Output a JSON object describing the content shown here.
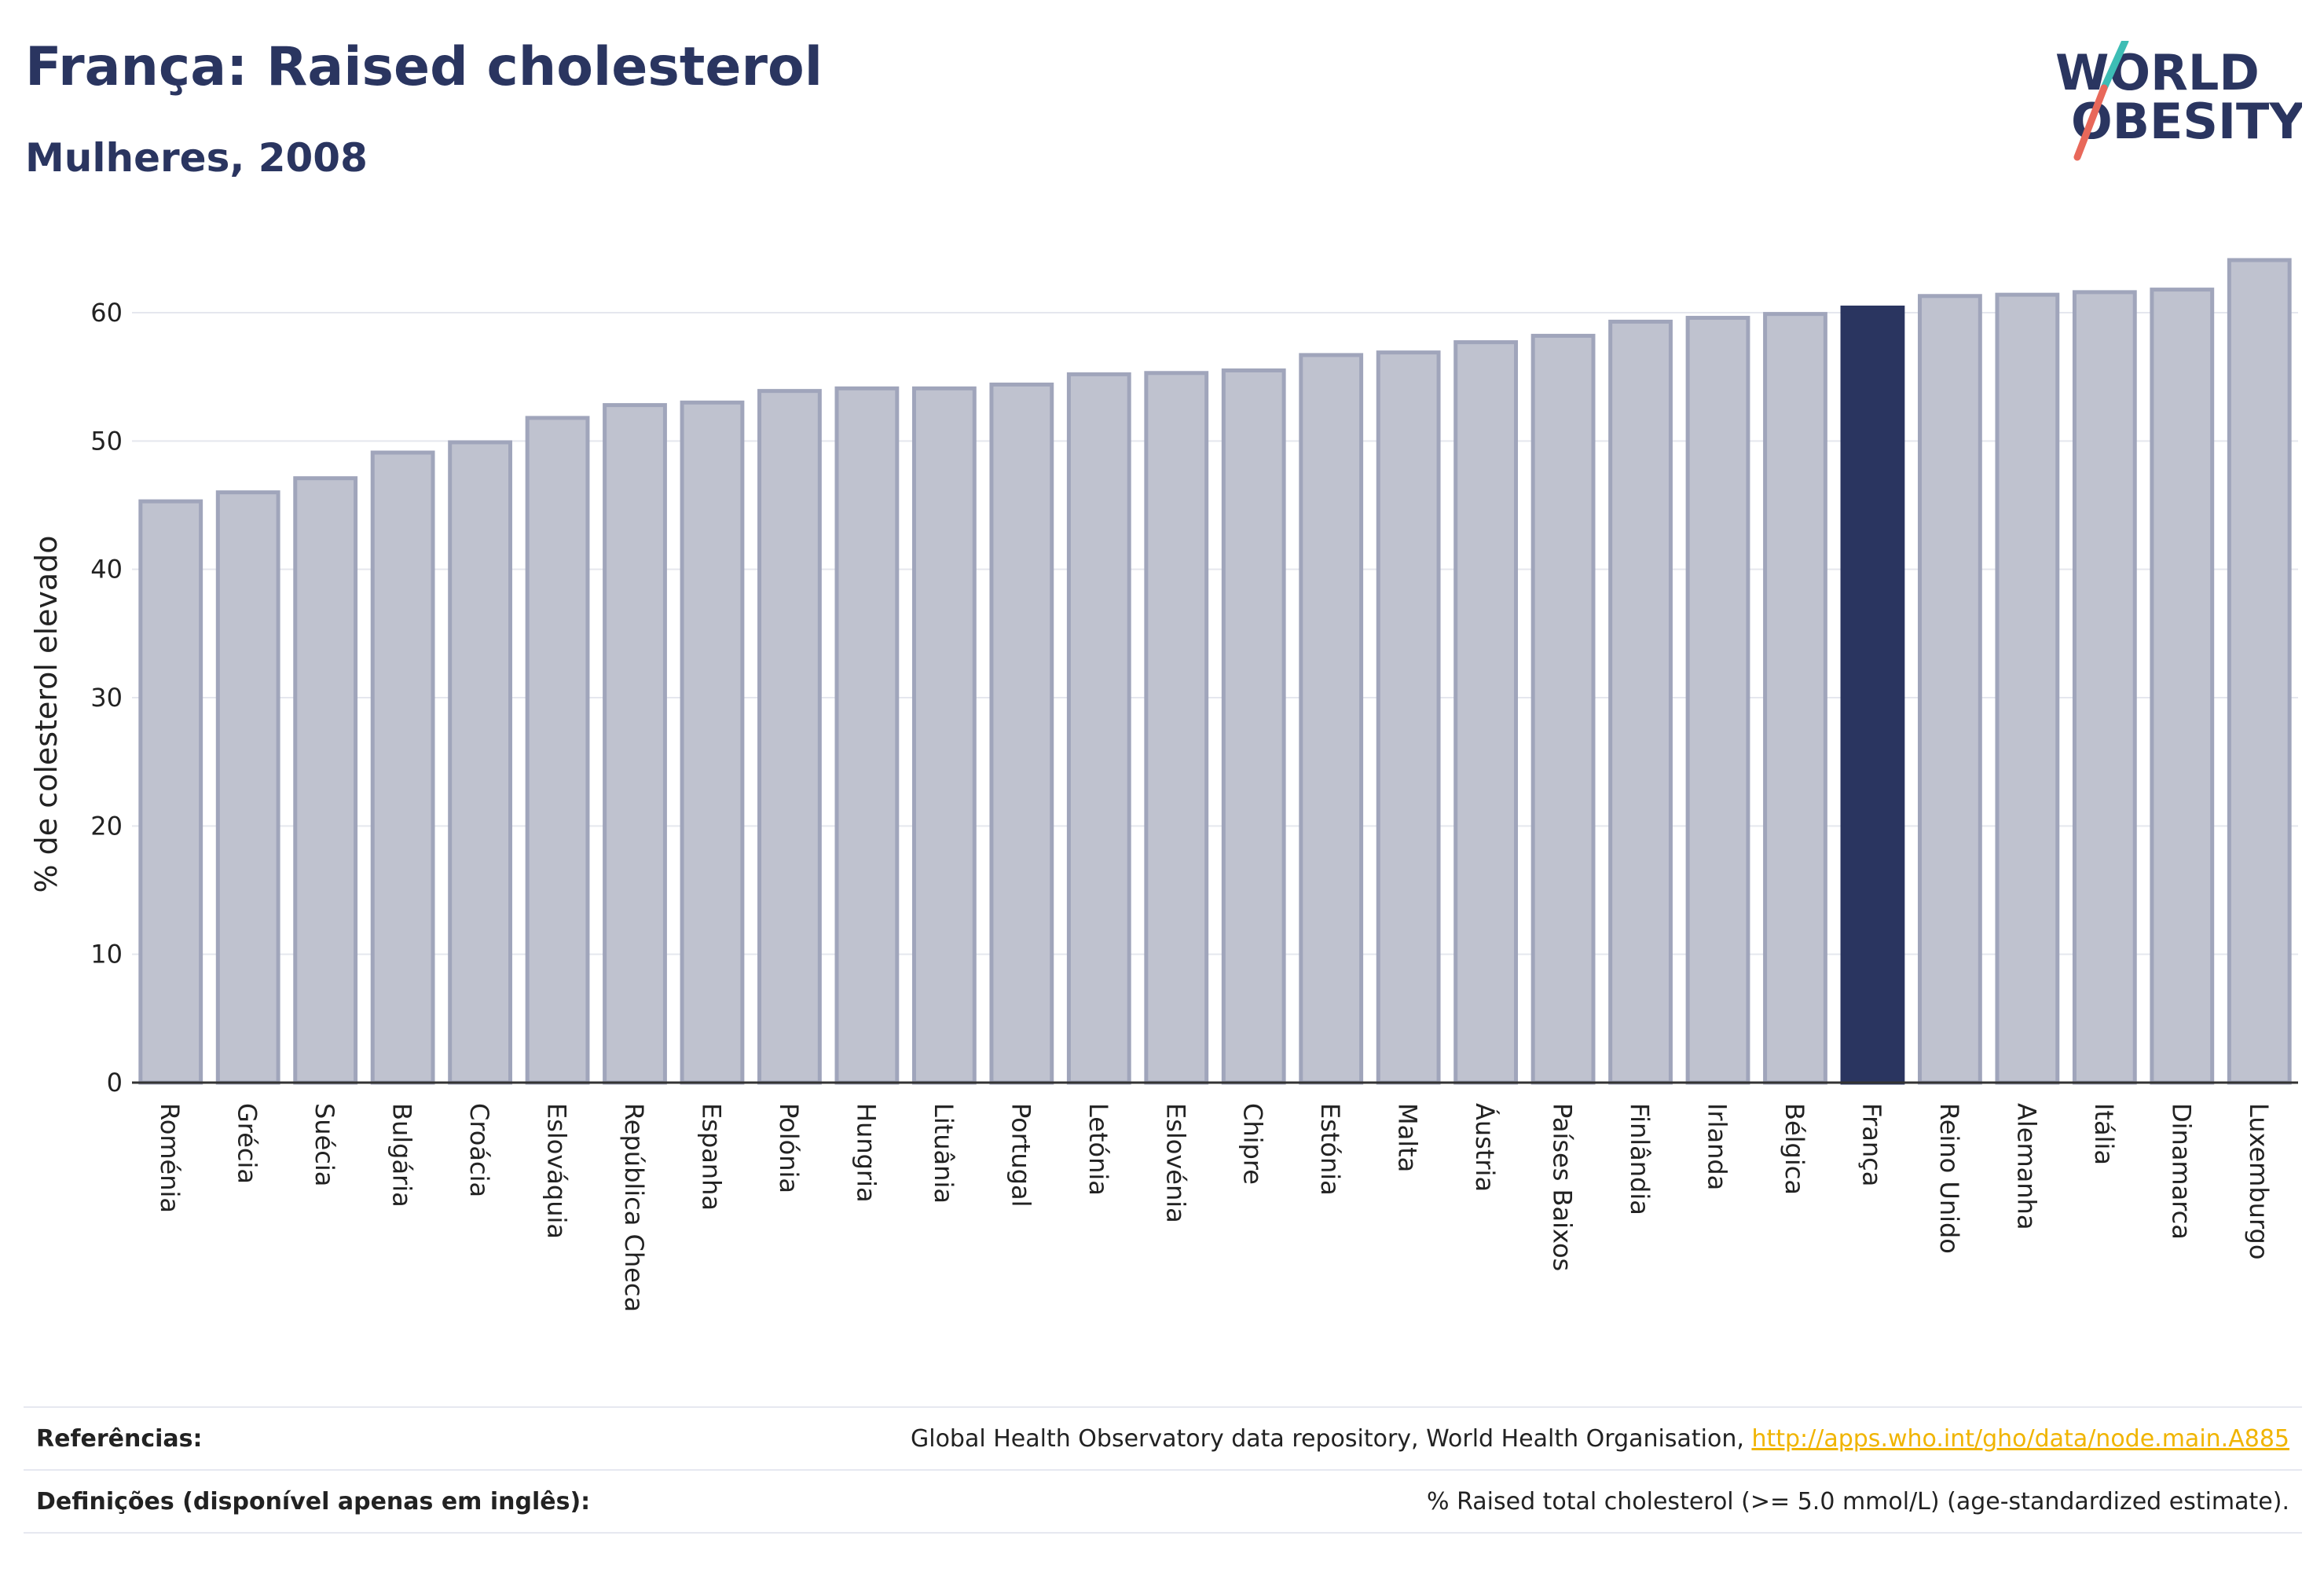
{
  "header": {
    "title": "França: Raised cholesterol",
    "subtitle": "Mulheres, 2008"
  },
  "logo": {
    "line1": "WORLD",
    "line2": "OBESITY",
    "colors": {
      "text": "#2a3560",
      "slash_teal": "#3dbdb5",
      "slash_coral": "#e8685a"
    }
  },
  "chart_data": {
    "type": "bar",
    "ylabel": "% de colesterol elevado",
    "ylim": [
      0,
      66
    ],
    "yticks": [
      0,
      10,
      20,
      30,
      40,
      50,
      60
    ],
    "grid": true,
    "highlight": "França",
    "colors": {
      "bar": "#bfc2cf",
      "bar_border": "#a0a5bb",
      "highlight": "#2a3560",
      "grid": "#e5e7ee"
    },
    "categories": [
      "Roménia",
      "Grécia",
      "Suécia",
      "Bulgária",
      "Croácia",
      "Eslováquia",
      "República Checa",
      "Espanha",
      "Polónia",
      "Hungria",
      "Lituânia",
      "Portugal",
      "Letónia",
      "Eslovénia",
      "Chipre",
      "Estónia",
      "Malta",
      "Áustria",
      "Países Baixos",
      "Finlândia",
      "Irlanda",
      "Bélgica",
      "França",
      "Reino Unido",
      "Alemanha",
      "Itália",
      "Dinamarca",
      "Luxemburgo"
    ],
    "values": [
      45.3,
      46.0,
      47.1,
      49.1,
      49.9,
      51.8,
      52.8,
      53.0,
      53.9,
      54.1,
      54.1,
      54.4,
      55.2,
      55.3,
      55.5,
      56.7,
      56.9,
      57.7,
      58.2,
      59.3,
      59.6,
      59.9,
      60.4,
      61.3,
      61.4,
      61.6,
      61.8,
      64.1
    ]
  },
  "footer": {
    "references_label": "Referências:",
    "references_text": "Global Health Observatory data repository, World Health Organisation,",
    "references_link": "http://apps.who.int/gho/data/node.main.A885",
    "definitions_label": "Definições (disponível apenas em inglês):",
    "definitions_text": "% Raised total cholesterol (>= 5.0 mmol/L) (age-standardized estimate)."
  }
}
